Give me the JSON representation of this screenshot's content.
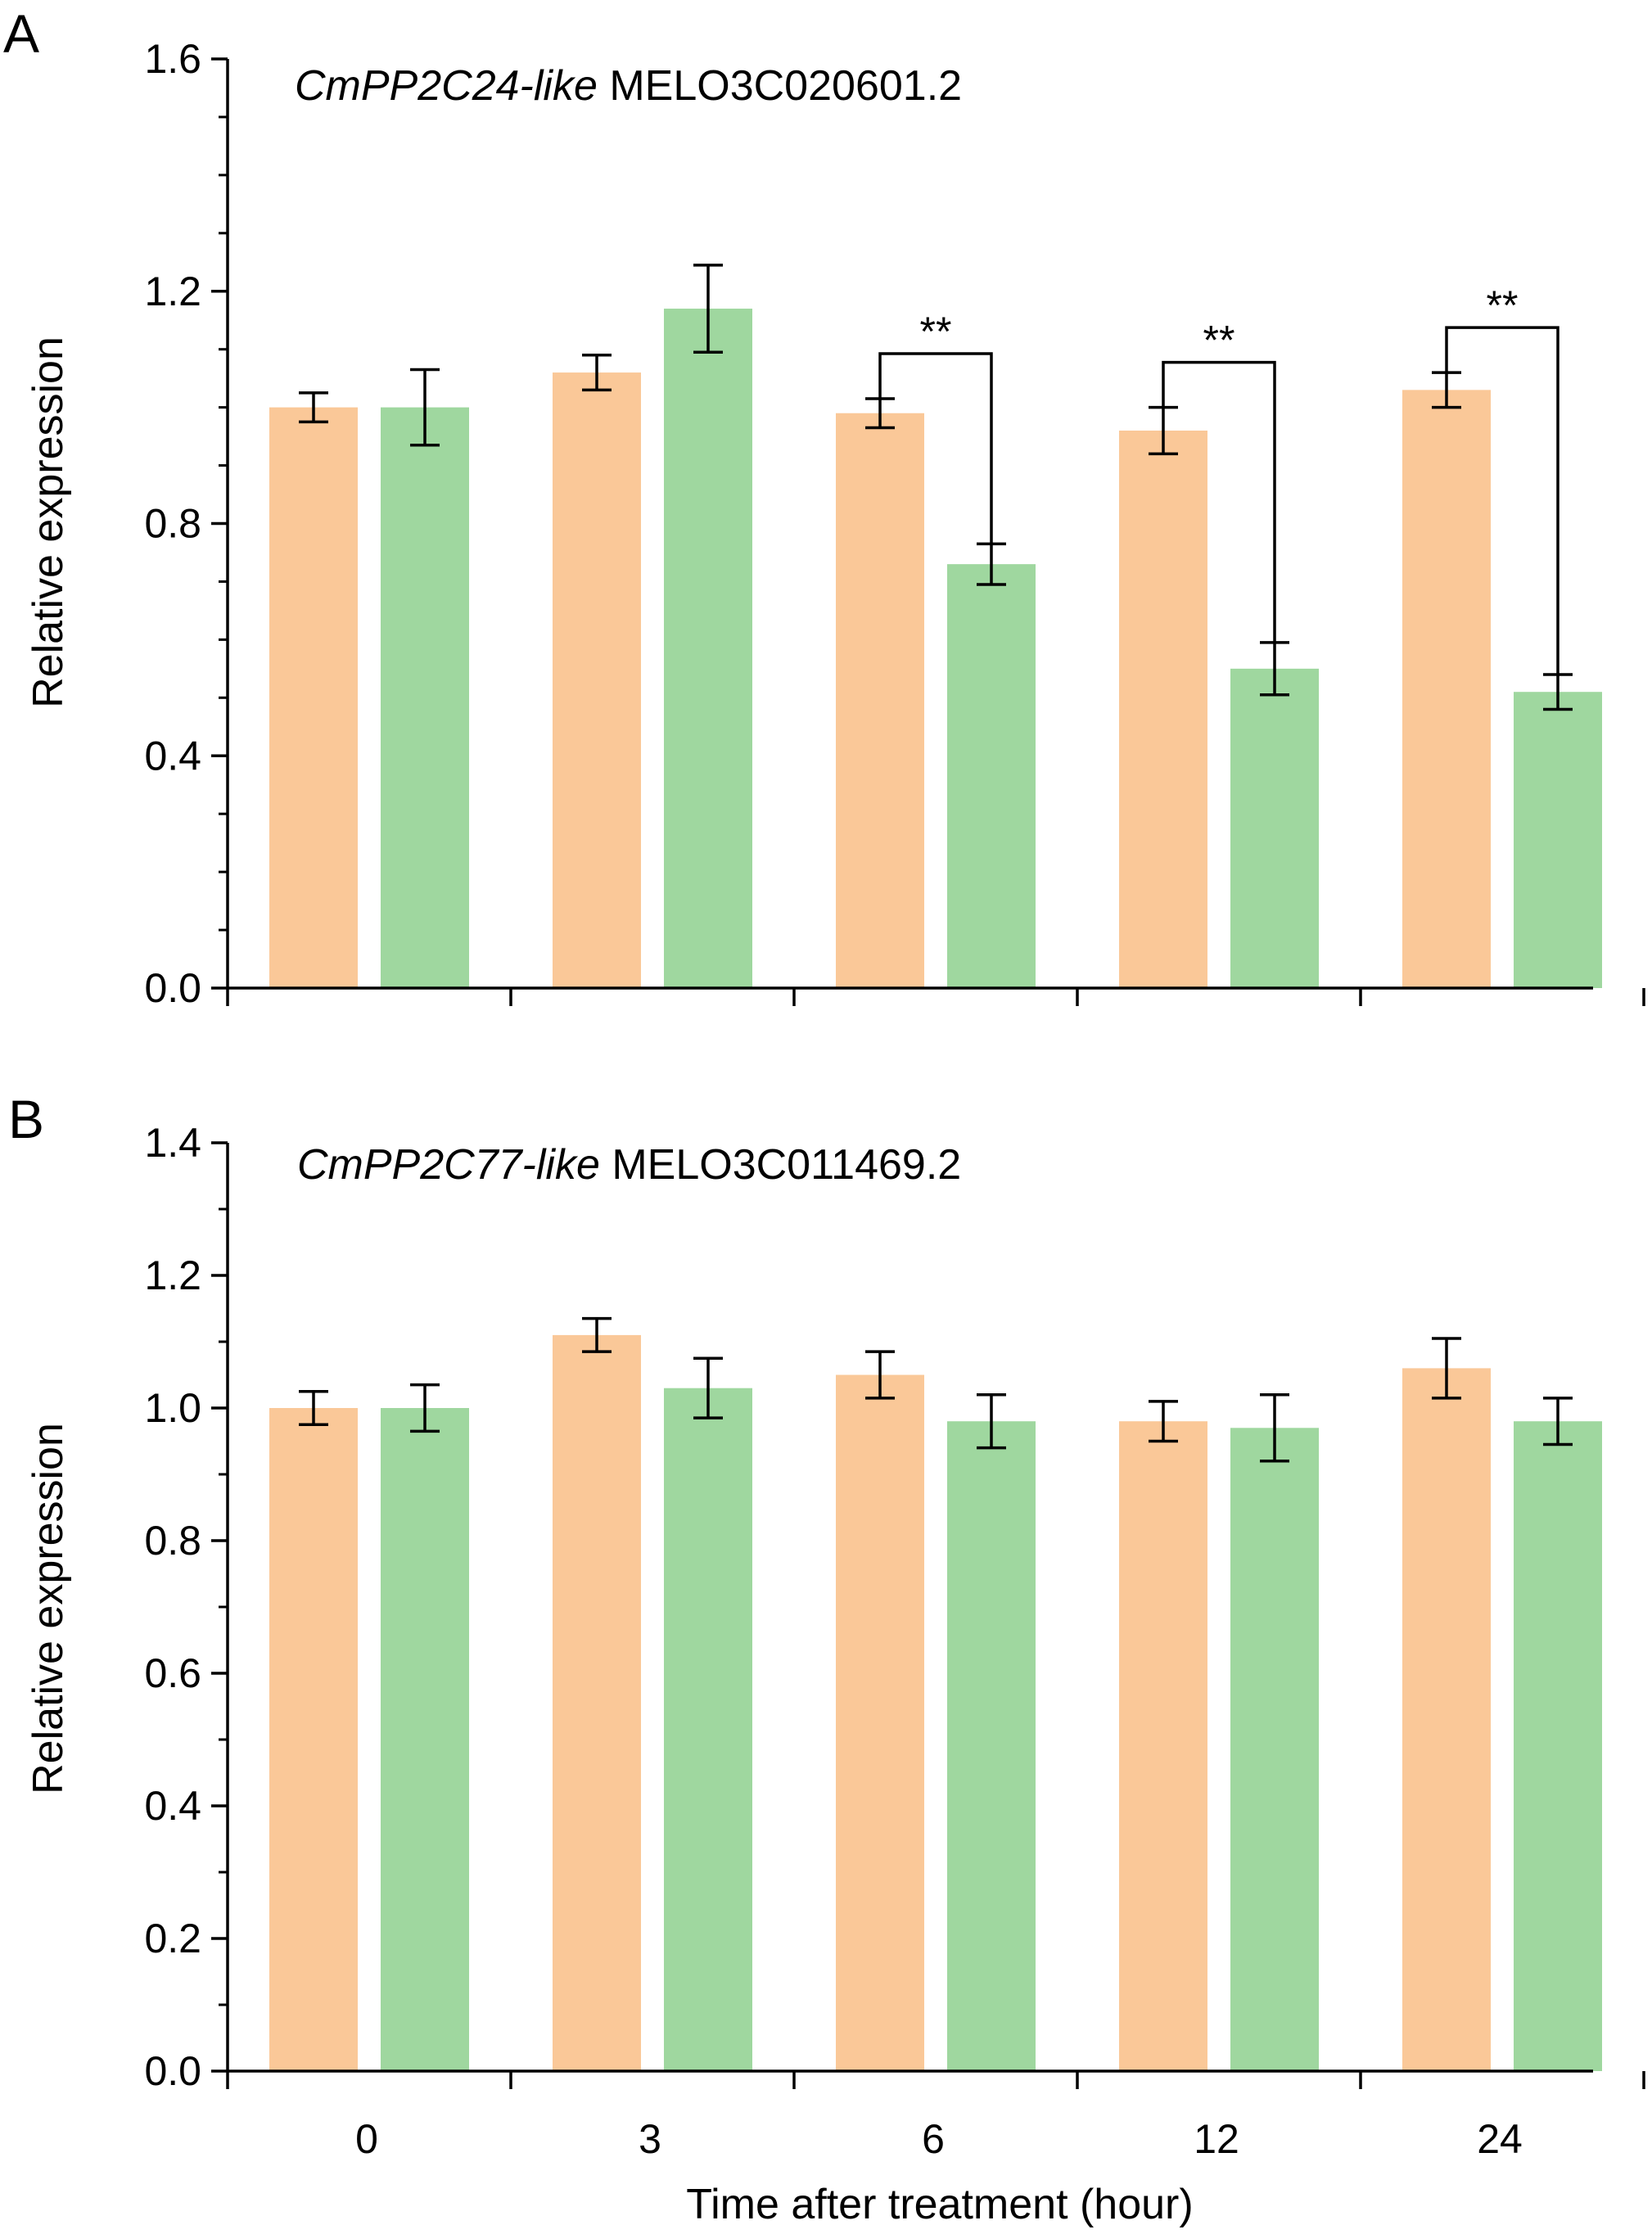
{
  "chart_data": [
    {
      "panel": "A",
      "type": "bar",
      "title_italic": "CmPP2C24-like",
      "title_rest": " MELO3C020601.2",
      "ylabel": "Relative expression",
      "xlabel": "",
      "ylim": [
        0,
        1.6
      ],
      "yticks": [
        "0.0",
        "0.4",
        "0.8",
        "1.2",
        "1.6"
      ],
      "categories": [
        "0",
        "3",
        "6",
        "12",
        "24"
      ],
      "series": [
        {
          "color": "#fac898",
          "values": [
            1.0,
            1.06,
            0.99,
            0.96,
            1.03
          ],
          "errors": [
            0.025,
            0.03,
            0.025,
            0.04,
            0.03
          ]
        },
        {
          "color": "#9fd79f",
          "values": [
            1.0,
            1.17,
            0.73,
            0.55,
            0.51
          ],
          "errors": [
            0.065,
            0.075,
            0.035,
            0.045,
            0.03
          ]
        }
      ],
      "significance": [
        {
          "category": 2,
          "label": "**"
        },
        {
          "category": 3,
          "label": "**"
        },
        {
          "category": 4,
          "label": "**"
        }
      ],
      "grid": false,
      "legend": "none"
    },
    {
      "panel": "B",
      "type": "bar",
      "title_italic": "CmPP2C77-like",
      "title_rest": " MELO3C011469.2",
      "ylabel": "Relative expression",
      "xlabel": "Time after treatment (hour)",
      "ylim": [
        0,
        1.4
      ],
      "yticks": [
        "0.0",
        "0.2",
        "0.4",
        "0.6",
        "0.8",
        "1.0",
        "1.2",
        "1.4"
      ],
      "categories": [
        "0",
        "3",
        "6",
        "12",
        "24"
      ],
      "series": [
        {
          "color": "#fac898",
          "values": [
            1.0,
            1.11,
            1.05,
            0.98,
            1.06
          ],
          "errors": [
            0.025,
            0.025,
            0.035,
            0.03,
            0.045
          ]
        },
        {
          "color": "#9fd79f",
          "values": [
            1.0,
            1.03,
            0.98,
            0.97,
            0.98
          ],
          "errors": [
            0.035,
            0.045,
            0.04,
            0.05,
            0.035
          ]
        }
      ],
      "significance": [],
      "grid": false,
      "legend": "none"
    }
  ]
}
